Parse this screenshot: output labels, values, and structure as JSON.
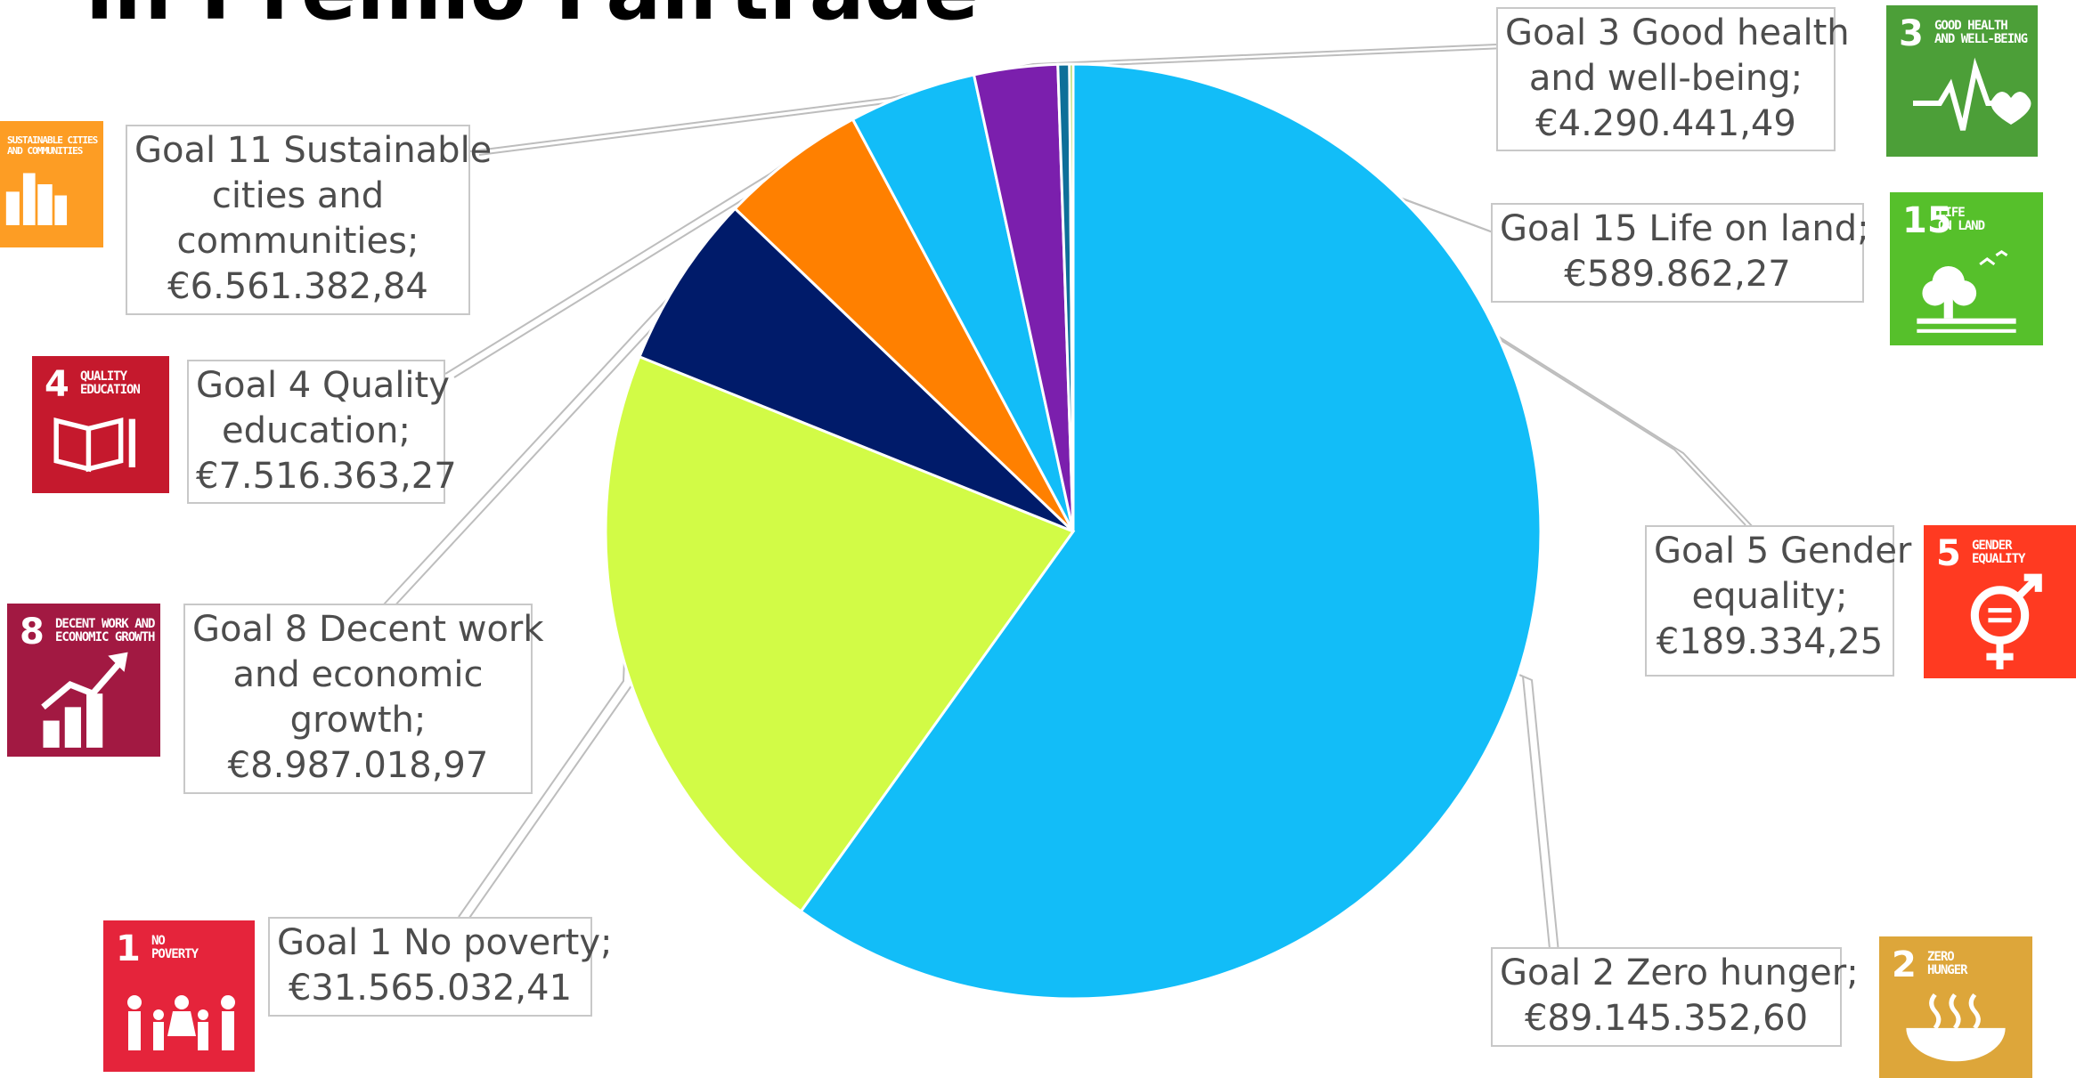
{
  "title": "in Premio Fairtrade",
  "chart_data": {
    "type": "pie",
    "slices": [
      {
        "goal": "Goal 2 Zero hunger",
        "value": 89145352.6,
        "color": "#12bdf8"
      },
      {
        "goal": "Goal 1 No poverty",
        "value": 31565032.41,
        "color": "#d2fb46"
      },
      {
        "goal": "Goal 8 Decent work and economic growth",
        "value": 8987018.97,
        "color": "#001b6a"
      },
      {
        "goal": "Goal 4 Quality education",
        "value": 7516363.27,
        "color": "#ff8000"
      },
      {
        "goal": "Goal 11 Sustainable cities and communities",
        "value": 6561382.84,
        "color": "#12bdf8"
      },
      {
        "goal": "Goal 3 Good health and well-being",
        "value": 4290441.49,
        "color": "#7b1fad"
      },
      {
        "goal": "Goal 15 Life on land",
        "value": 589862.27,
        "color": "#0e6f99"
      },
      {
        "goal": "Goal 5 Gender equality",
        "value": 189334.25,
        "color": "#9bce3a"
      }
    ]
  },
  "labels": [
    {
      "id": "g3",
      "lines": [
        "Goal 3 Good health",
        "and well-being;",
        "€4.290.441,49"
      ]
    },
    {
      "id": "g11",
      "lines": [
        "Goal 11 Sustainable",
        "cities and",
        "communities;",
        "€6.561.382,84"
      ]
    },
    {
      "id": "g15",
      "lines": [
        "Goal 15 Life on land;",
        "€589.862,27"
      ]
    },
    {
      "id": "g4",
      "lines": [
        "Goal 4 Quality",
        "education;",
        "€7.516.363,27"
      ]
    },
    {
      "id": "g5",
      "lines": [
        "Goal 5 Gender",
        "equality;",
        "€189.334,25"
      ]
    },
    {
      "id": "g8",
      "lines": [
        "Goal 8 Decent work",
        "and economic",
        "growth;",
        "€8.987.018,97"
      ]
    },
    {
      "id": "g1",
      "lines": [
        "Goal 1 No poverty;",
        "€31.565.032,41"
      ]
    },
    {
      "id": "g2",
      "lines": [
        "Goal 2 Zero hunger;",
        "€89.145.352,60"
      ]
    }
  ],
  "icons": [
    {
      "id": "sdg3",
      "number": "3",
      "caption": [
        "GOOD HEALTH",
        "AND WELL-BEING"
      ],
      "color": "#4c9f38",
      "symbol": "heartbeat-icon"
    },
    {
      "id": "sdg15",
      "number": "15",
      "caption": [
        "LIFE",
        "ON LAND"
      ],
      "color": "#56c02b",
      "symbol": "tree-icon"
    },
    {
      "id": "sdg11",
      "number": "",
      "caption": [
        "SUSTAINABLE CITIES",
        "AND COMMUNITIES"
      ],
      "color": "#fd9d24",
      "symbol": "city-icon"
    },
    {
      "id": "sdg4",
      "number": "4",
      "caption": [
        "QUALITY",
        "EDUCATION"
      ],
      "color": "#c5192d",
      "symbol": "book-icon"
    },
    {
      "id": "sdg5",
      "number": "5",
      "caption": [
        "GENDER",
        "EQUALITY"
      ],
      "color": "#ff3a21",
      "symbol": "gender-icon"
    },
    {
      "id": "sdg8",
      "number": "8",
      "caption": [
        "DECENT WORK AND",
        "ECONOMIC GROWTH"
      ],
      "color": "#a21942",
      "symbol": "growth-chart-icon"
    },
    {
      "id": "sdg1",
      "number": "1",
      "caption": [
        "NO",
        "POVERTY"
      ],
      "color": "#e5243b",
      "symbol": "family-icon"
    },
    {
      "id": "sdg2",
      "number": "2",
      "caption": [
        "ZERO",
        "HUNGER"
      ],
      "color": "#dda63a",
      "symbol": "bowl-icon"
    }
  ]
}
